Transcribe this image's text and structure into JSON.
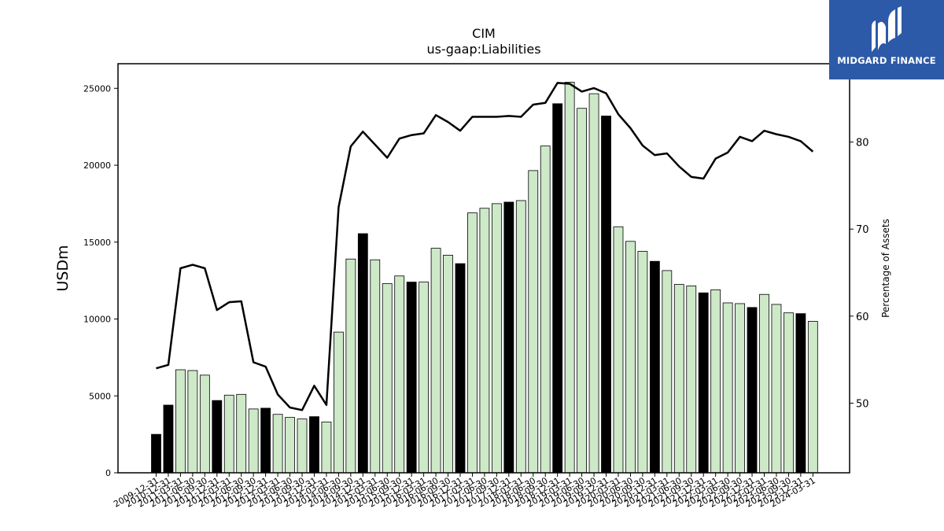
{
  "header": {
    "title": "CIM",
    "subtitle": "us-gaap:Liabilities"
  },
  "logo": {
    "text": "MIDGARD FINANCE",
    "bg_color": "#2d5aa8"
  },
  "chart_data": {
    "type": "bar",
    "title": "CIM",
    "subtitle": "us-gaap:Liabilities",
    "ylabel": "USDm",
    "y2label": "Percentage of Assets",
    "ylim": [
      0,
      26600
    ],
    "y2lim": [
      42,
      89
    ],
    "yticks": [
      0,
      5000,
      10000,
      15000,
      20000,
      25000
    ],
    "y2ticks": [
      50,
      60,
      70,
      80
    ],
    "categories": [
      "2009-12-31",
      "2010-12-31",
      "2011-03-31",
      "2011-06-30",
      "2011-09-30",
      "2011-12-31",
      "2012-03-31",
      "2012-06-30",
      "2012-09-30",
      "2012-12-31",
      "2013-03-31",
      "2013-06-30",
      "2013-09-30",
      "2013-12-31",
      "2014-03-31",
      "2014-06-30",
      "2014-09-30",
      "2014-12-31",
      "2015-03-31",
      "2015-06-30",
      "2015-09-30",
      "2015-12-31",
      "2016-03-31",
      "2016-06-30",
      "2016-09-30",
      "2016-12-31",
      "2017-03-31",
      "2017-06-30",
      "2017-09-30",
      "2017-12-31",
      "2018-03-31",
      "2018-06-30",
      "2018-09-30",
      "2018-12-31",
      "2019-03-31",
      "2019-06-30",
      "2019-09-30",
      "2019-12-31",
      "2020-03-31",
      "2020-06-30",
      "2020-09-30",
      "2020-12-31",
      "2021-03-31",
      "2021-06-30",
      "2021-09-30",
      "2021-12-31",
      "2022-03-31",
      "2022-06-30",
      "2022-09-30",
      "2022-12-31",
      "2023-03-31",
      "2023-06-30",
      "2023-09-30",
      "2023-12-31",
      "2024-03-31"
    ],
    "series": [
      {
        "type": "bar",
        "values": [
          2500,
          4400,
          6700,
          6650,
          6350,
          4700,
          5050,
          5100,
          4150,
          4200,
          3800,
          3600,
          3500,
          3650,
          3300,
          9150,
          13900,
          15550,
          13850,
          12300,
          12800,
          12400,
          12400,
          14600,
          14150,
          13600,
          16900,
          17200,
          17500,
          17600,
          17700,
          19650,
          21250,
          24000,
          25400,
          23700,
          24650,
          23200,
          16000,
          15050,
          14400,
          13750,
          13150,
          12250,
          12150,
          11700,
          11900,
          11050,
          11000,
          10750,
          11600,
          10950,
          10400,
          10350,
          9850
        ],
        "highlight": [
          true,
          true,
          false,
          false,
          false,
          true,
          false,
          false,
          false,
          true,
          false,
          false,
          false,
          true,
          false,
          false,
          false,
          true,
          false,
          false,
          false,
          true,
          false,
          false,
          false,
          true,
          false,
          false,
          false,
          true,
          false,
          false,
          false,
          true,
          false,
          false,
          false,
          true,
          false,
          false,
          false,
          true,
          false,
          false,
          false,
          true,
          false,
          false,
          false,
          true,
          false,
          false,
          false,
          true,
          false
        ]
      },
      {
        "type": "line",
        "axis": "right",
        "values": [
          54.0,
          54.4,
          65.5,
          65.9,
          65.5,
          60.7,
          61.6,
          61.7,
          54.7,
          54.2,
          51.0,
          49.5,
          49.2,
          52.0,
          49.8,
          72.5,
          79.5,
          81.2,
          79.7,
          78.2,
          80.4,
          80.8,
          81.0,
          83.1,
          82.3,
          81.3,
          82.9,
          82.9,
          82.9,
          83.0,
          82.9,
          84.3,
          84.5,
          86.8,
          86.7,
          85.8,
          86.2,
          85.6,
          83.2,
          81.6,
          79.6,
          78.5,
          78.7,
          77.2,
          76.0,
          75.8,
          78.1,
          78.8,
          80.6,
          80.1,
          81.3,
          80.9,
          80.6,
          80.1,
          78.9
        ]
      }
    ],
    "colors": {
      "bar_highlight": "#000000",
      "bar_normal": "#cde9c8",
      "bar_edge": "#000000",
      "line": "#000000"
    },
    "grid": false,
    "legend": "none"
  }
}
